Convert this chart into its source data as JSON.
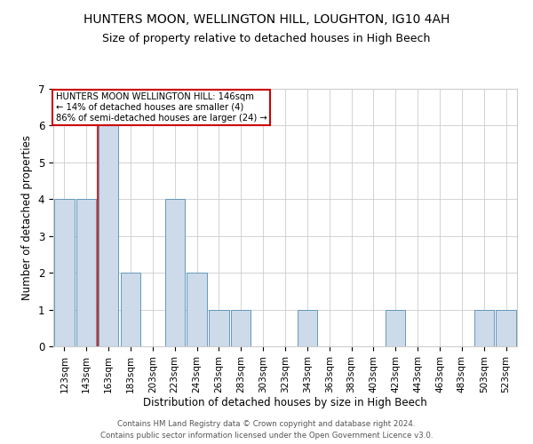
{
  "title": "HUNTERS MOON, WELLINGTON HILL, LOUGHTON, IG10 4AH",
  "subtitle": "Size of property relative to detached houses in High Beech",
  "xlabel": "Distribution of detached houses by size in High Beech",
  "ylabel": "Number of detached properties",
  "categories": [
    "123sqm",
    "143sqm",
    "163sqm",
    "183sqm",
    "203sqm",
    "223sqm",
    "243sqm",
    "263sqm",
    "283sqm",
    "303sqm",
    "323sqm",
    "343sqm",
    "363sqm",
    "383sqm",
    "403sqm",
    "423sqm",
    "443sqm",
    "463sqm",
    "483sqm",
    "503sqm",
    "523sqm"
  ],
  "values": [
    4,
    4,
    6,
    2,
    0,
    4,
    2,
    1,
    1,
    0,
    0,
    1,
    0,
    0,
    0,
    1,
    0,
    0,
    0,
    1,
    1
  ],
  "bar_color": "#ccdaea",
  "bar_edge_color": "#6699bb",
  "red_line_x": 1.5,
  "annotation_text": "HUNTERS MOON WELLINGTON HILL: 146sqm\n← 14% of detached houses are smaller (4)\n86% of semi-detached houses are larger (24) →",
  "annotation_box_color": "#ffffff",
  "annotation_box_edge_color": "#cc0000",
  "ylim": [
    0,
    7
  ],
  "yticks": [
    0,
    1,
    2,
    3,
    4,
    5,
    6,
    7
  ],
  "background_color": "#ffffff",
  "grid_color": "#cccccc",
  "footer_line1": "Contains HM Land Registry data © Crown copyright and database right 2024.",
  "footer_line2": "Contains public sector information licensed under the Open Government Licence v3.0.",
  "title_fontsize": 10,
  "subtitle_fontsize": 9,
  "bar_width": 0.9
}
